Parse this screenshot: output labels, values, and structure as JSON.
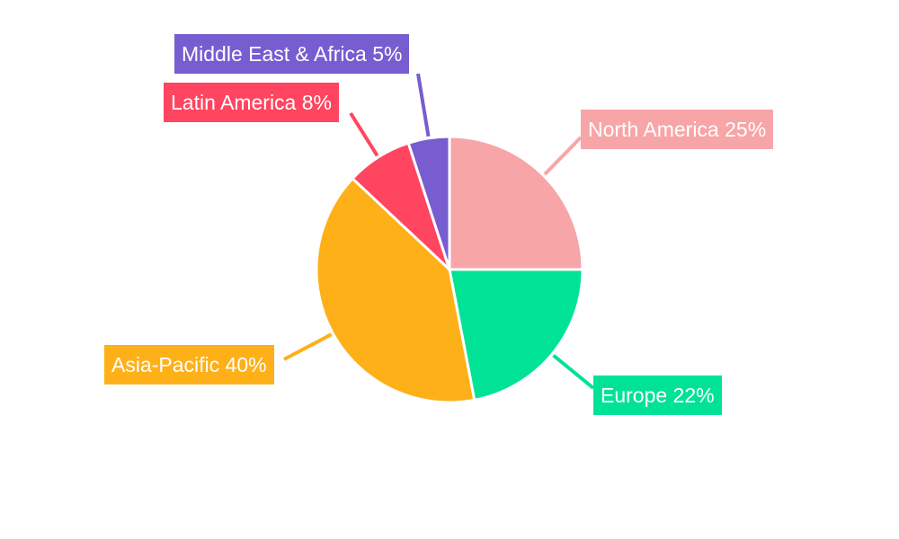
{
  "chart_data": {
    "type": "pie",
    "categories": [
      "North America",
      "Europe",
      "Asia-Pacific",
      "Latin America",
      "Middle East & Africa"
    ],
    "values": [
      25,
      22,
      40,
      8,
      5
    ],
    "labels": [
      "North America 25%",
      "Europe 22%",
      "Asia-Pacific 40%",
      "Latin America 8%",
      "Middle East & Africa 5%"
    ],
    "colors": [
      "#f8a5a8",
      "#00e396",
      "#feb019",
      "#ff4560",
      "#775dd0"
    ],
    "start_angle": "12 o'clock, clockwise",
    "legend": "none"
  }
}
